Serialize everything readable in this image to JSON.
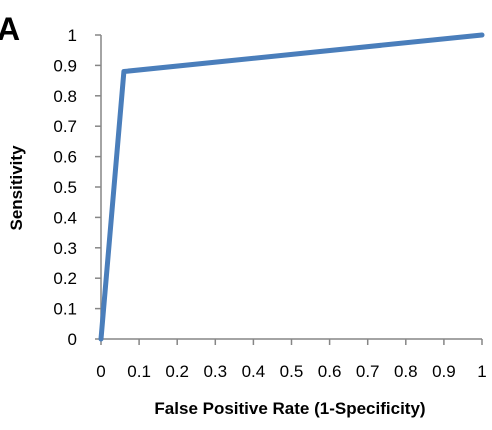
{
  "panel_label": "A",
  "colors": {
    "series_line": "#4a7ebb",
    "axis": "#868686",
    "text": "#000000"
  },
  "chart_data": {
    "type": "line",
    "title": "",
    "xlabel": "False Positive Rate (1-Specificity)",
    "ylabel": "Sensitivity",
    "xlim": [
      0,
      1
    ],
    "ylim": [
      0,
      1
    ],
    "x_ticks": [
      "0",
      "0.1",
      "0.2",
      "0.3",
      "0.4",
      "0.5",
      "0.6",
      "0.7",
      "0.8",
      "0.9",
      "1"
    ],
    "y_ticks": [
      "0",
      "0.1",
      "0.2",
      "0.3",
      "0.4",
      "0.5",
      "0.6",
      "0.7",
      "0.8",
      "0.9",
      "1"
    ],
    "grid": false,
    "legend": "none",
    "series": [
      {
        "x": [
          0,
          0.06,
          1
        ],
        "y": [
          0,
          0.88,
          1
        ]
      }
    ]
  }
}
